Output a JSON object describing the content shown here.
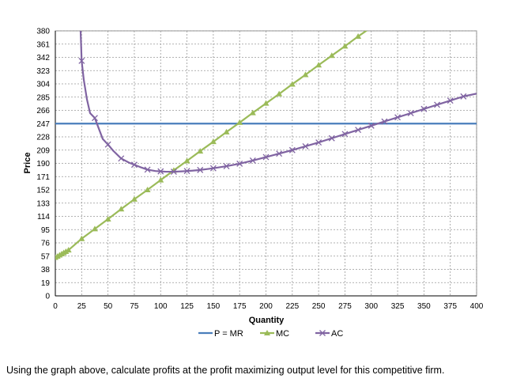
{
  "question": "Using the graph above, calculate profits at the profit maximizing output level for this competitive firm.",
  "chart_data": {
    "type": "line",
    "xlabel": "Quantity",
    "ylabel": "Price",
    "xlim": [
      0,
      400
    ],
    "ylim": [
      0,
      380
    ],
    "x_ticks": [
      0,
      25,
      50,
      75,
      100,
      125,
      150,
      175,
      200,
      225,
      250,
      275,
      300,
      325,
      350,
      375,
      400
    ],
    "y_ticks": [
      0,
      19,
      38,
      57,
      76,
      95,
      114,
      133,
      152,
      171,
      190,
      209,
      228,
      247,
      266,
      285,
      304,
      323,
      342,
      361,
      380
    ],
    "grid": true,
    "legend_position": "bottom",
    "series": [
      {
        "name": "P = MR",
        "color": "#4a7ebb",
        "marker": "none",
        "points": [
          [
            0,
            247
          ],
          [
            400,
            247
          ]
        ]
      },
      {
        "name": "MC",
        "color": "#9bbb59",
        "marker": "triangle",
        "points": [
          [
            0,
            55
          ],
          [
            2,
            56.7
          ],
          [
            4,
            58.4
          ],
          [
            6,
            60.1
          ],
          [
            8,
            61.8
          ],
          [
            10,
            63.5
          ],
          [
            12.5,
            65.6
          ],
          [
            25,
            82
          ],
          [
            37.5,
            96
          ],
          [
            50,
            110
          ],
          [
            62.5,
            124.5
          ],
          [
            75,
            138.5
          ],
          [
            87.5,
            152
          ],
          [
            100,
            166
          ],
          [
            112.5,
            180
          ],
          [
            125,
            193.5
          ],
          [
            137.5,
            207.5
          ],
          [
            150,
            221
          ],
          [
            162.5,
            235
          ],
          [
            175,
            248.5
          ],
          [
            187.5,
            262.5
          ],
          [
            200,
            276
          ],
          [
            212.5,
            289.5
          ],
          [
            225,
            303.5
          ],
          [
            237.5,
            317
          ],
          [
            250,
            331
          ],
          [
            262.5,
            344.5
          ],
          [
            275,
            358
          ],
          [
            287.5,
            372
          ],
          [
            300,
            385
          ]
        ]
      },
      {
        "name": "AC",
        "color": "#8064a2",
        "marker": "x",
        "curve_x": [
          24,
          25,
          27,
          30,
          33,
          37.5,
          42,
          45,
          50,
          55,
          62.5,
          70,
          75,
          80,
          87.5,
          95,
          100,
          105,
          112.5,
          120,
          125,
          130,
          137.5,
          145,
          150,
          162.5,
          175,
          187.5,
          200,
          212.5,
          225,
          237.5,
          250,
          262.5,
          275,
          287.5,
          300,
          312.5,
          325,
          337.5,
          350,
          362.5,
          375,
          387.5,
          400
        ],
        "curve_y": [
          380,
          337,
          310,
          282,
          262,
          255,
          237,
          225,
          217,
          208,
          197,
          191,
          188,
          185,
          181,
          179,
          178.5,
          178,
          178,
          178.5,
          179,
          179.5,
          180.5,
          182,
          183,
          186,
          189.5,
          194,
          199,
          204,
          209,
          214.5,
          220,
          226,
          232,
          238,
          244,
          250,
          256,
          262,
          268,
          274,
          280,
          286,
          290
        ],
        "marker_x": [
          25,
          37.5,
          50,
          62.5,
          75,
          87.5,
          100,
          112.5,
          125,
          137.5,
          150,
          162.5,
          175,
          187.5,
          200,
          212.5,
          225,
          237.5,
          250,
          262.5,
          275,
          287.5,
          300,
          312.5,
          325,
          337.5,
          350,
          362.5,
          375,
          387.5
        ]
      }
    ]
  }
}
